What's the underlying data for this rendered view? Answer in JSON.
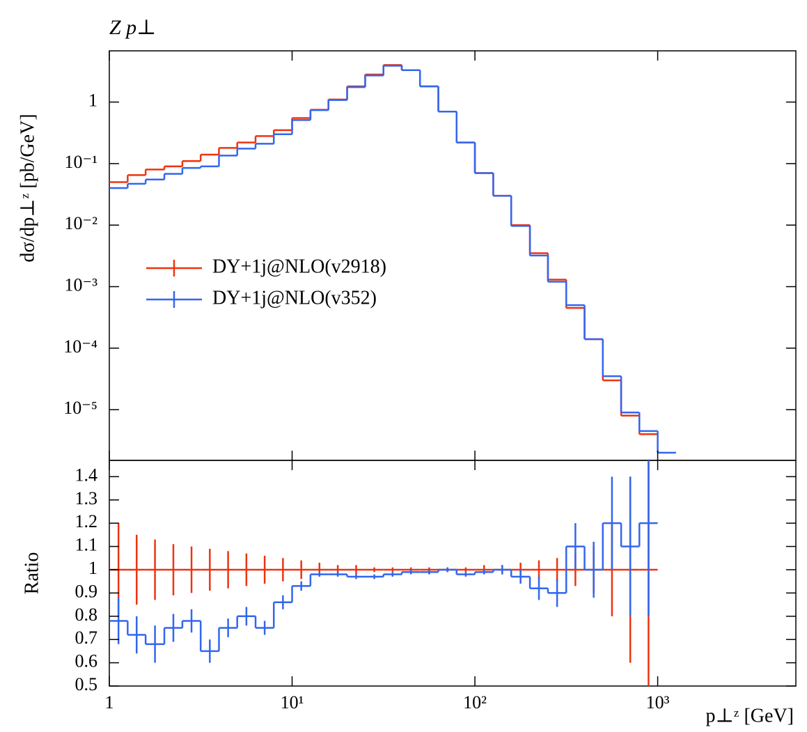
{
  "chart_data": [
    {
      "type": "histogram",
      "title": "Z p⊥",
      "y_label": "dσ/dp⊥ᶻ [pb/GeV]",
      "bins": [
        1,
        1.26,
        1.58,
        2,
        2.51,
        3.16,
        3.98,
        5.01,
        6.31,
        7.94,
        10,
        12.6,
        15.8,
        20,
        25.1,
        31.6,
        39.8,
        50.1,
        63.1,
        79.4,
        100,
        126,
        158,
        200,
        251,
        316,
        398,
        501,
        631,
        794,
        1000,
        1259
      ],
      "series": [
        {
          "name": "DY+1j@NLO(v2918)",
          "color": "#ee3311",
          "values": [
            0.05,
            0.065,
            0.08,
            0.09,
            0.11,
            0.14,
            0.18,
            0.22,
            0.28,
            0.35,
            0.55,
            0.75,
            1.1,
            1.8,
            2.8,
            4.0,
            3.3,
            1.8,
            0.7,
            0.22,
            0.07,
            0.03,
            0.01,
            0.0035,
            0.0013,
            0.00045,
            0.00014,
            3e-05,
            8e-06,
            4e-06,
            null
          ]
        },
        {
          "name": "DY+1j@NLO(v352)",
          "color": "#3366ee",
          "values": [
            0.04,
            0.047,
            0.055,
            0.068,
            0.085,
            0.09,
            0.135,
            0.175,
            0.21,
            0.3,
            0.51,
            0.74,
            1.08,
            1.75,
            2.7,
            3.9,
            3.3,
            1.8,
            0.7,
            0.22,
            0.07,
            0.03,
            0.0097,
            0.0032,
            0.0012,
            0.0005,
            0.00014,
            3.5e-05,
            9e-06,
            4.5e-06,
            2e-06
          ]
        }
      ],
      "log_x": true,
      "log_y": true,
      "legend": "center-left",
      "ylim": [
        1.5e-06,
        6.8
      ],
      "yticks": [
        {
          "value": 1e-05,
          "label": "10⁻⁵"
        },
        {
          "value": 0.0001,
          "label": "10⁻⁴"
        },
        {
          "value": 0.001,
          "label": "10⁻³"
        },
        {
          "value": 0.01,
          "label": "10⁻²"
        },
        {
          "value": 0.1,
          "label": "10⁻¹"
        },
        1
      ]
    },
    {
      "type": "histogram",
      "y_label": "Ratio",
      "x_label": "p⊥ᶻ [GeV]",
      "series": [
        {
          "color": "#ee3311",
          "values": [
            1,
            1,
            1,
            1,
            1,
            1,
            1,
            1,
            1,
            1,
            1,
            1,
            1,
            1,
            1,
            1,
            1,
            1,
            1,
            1,
            1,
            1,
            1,
            1,
            1,
            1,
            1,
            1,
            1,
            1,
            null
          ],
          "errors": [
            0.2,
            0.15,
            0.13,
            0.11,
            0.1,
            0.09,
            0.08,
            0.07,
            0.06,
            0.05,
            0.04,
            0.03,
            0.02,
            0.02,
            0.01,
            0.01,
            0.01,
            0.01,
            0.01,
            0.01,
            0.02,
            0.02,
            0.03,
            0.04,
            0.05,
            0.07,
            0.1,
            0.2,
            0.4,
            0.5,
            null
          ]
        },
        {
          "color": "#3366ee",
          "values": [
            0.78,
            0.72,
            0.68,
            0.75,
            0.78,
            0.65,
            0.75,
            0.8,
            0.75,
            0.86,
            0.93,
            0.98,
            0.98,
            0.97,
            0.97,
            0.98,
            0.99,
            0.99,
            1.0,
            0.98,
            0.99,
            1.0,
            0.97,
            0.92,
            0.9,
            1.1,
            1.0,
            1.2,
            1.1,
            1.2,
            null
          ],
          "errors": [
            0.1,
            0.08,
            0.08,
            0.06,
            0.05,
            0.05,
            0.04,
            0.04,
            0.03,
            0.03,
            0.02,
            0.01,
            0.01,
            0.01,
            0.01,
            0.01,
            0.01,
            0.01,
            0.01,
            0.01,
            0.01,
            0.02,
            0.03,
            0.05,
            0.06,
            0.1,
            0.12,
            0.2,
            0.3,
            0.4,
            null
          ]
        }
      ],
      "log_x": true,
      "xlim": [
        1,
        5700
      ],
      "xticks": [
        1,
        {
          "value": 10,
          "label": "10¹"
        },
        {
          "value": 100,
          "label": "10²"
        },
        {
          "value": 1000,
          "label": "10³"
        }
      ],
      "ylim": [
        0.5,
        1.47
      ],
      "yticks": [
        0.5,
        0.6,
        0.7,
        0.8,
        0.9,
        1,
        1.1,
        1.2,
        1.3,
        1.4
      ]
    }
  ]
}
